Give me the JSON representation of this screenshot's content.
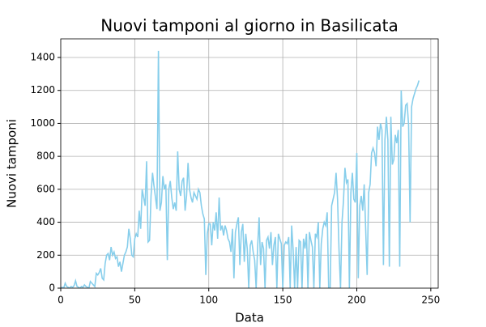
{
  "chart_data": {
    "type": "line",
    "title": "Nuovi tamponi al giorno in Basilicata",
    "xlabel": "Data",
    "ylabel": "Nuovi tamponi",
    "x": [
      0,
      1,
      2,
      3,
      4,
      5,
      6,
      7,
      8,
      9,
      10,
      11,
      12,
      13,
      14,
      15,
      16,
      17,
      18,
      19,
      20,
      21,
      22,
      23,
      24,
      25,
      26,
      27,
      28,
      29,
      30,
      31,
      32,
      33,
      34,
      35,
      36,
      37,
      38,
      39,
      40,
      41,
      42,
      43,
      44,
      45,
      46,
      47,
      48,
      49,
      50,
      51,
      52,
      53,
      54,
      55,
      56,
      57,
      58,
      59,
      60,
      61,
      62,
      63,
      64,
      65,
      66,
      67,
      68,
      69,
      70,
      71,
      72,
      73,
      74,
      75,
      76,
      77,
      78,
      79,
      80,
      81,
      82,
      83,
      84,
      85,
      86,
      87,
      88,
      89,
      90,
      91,
      92,
      93,
      94,
      95,
      96,
      97,
      98,
      99,
      100,
      101,
      102,
      103,
      104,
      105,
      106,
      107,
      108,
      109,
      110,
      111,
      112,
      113,
      114,
      115,
      116,
      117,
      118,
      119,
      120,
      121,
      122,
      123,
      124,
      125,
      126,
      127,
      128,
      129,
      130,
      131,
      132,
      133,
      134,
      135,
      136,
      137,
      138,
      139,
      140,
      141,
      142,
      143,
      144,
      145,
      146,
      147,
      148,
      149,
      150,
      151,
      152,
      153,
      154,
      155,
      156,
      157,
      158,
      159,
      160,
      161,
      162,
      163,
      164,
      165,
      166,
      167,
      168,
      169,
      170,
      171,
      172,
      173,
      174,
      175,
      176,
      177,
      178,
      179,
      180,
      181,
      182,
      183,
      184,
      185,
      186,
      187,
      188,
      189,
      190,
      191,
      192,
      193,
      194,
      195,
      196,
      197,
      198,
      199,
      200,
      201,
      202,
      203,
      204,
      205,
      206,
      207,
      208,
      209,
      210,
      211,
      212,
      213,
      214,
      215,
      216,
      217,
      218,
      219,
      220,
      221,
      222,
      223,
      224,
      225,
      226,
      227,
      228,
      229,
      230,
      231,
      232,
      233,
      234,
      235,
      236,
      237,
      238,
      239,
      240,
      241,
      242
    ],
    "series": [
      {
        "color": "#87ceeb",
        "values": [
          0,
          5,
          0,
          30,
          10,
          5,
          0,
          10,
          5,
          15,
          45,
          10,
          5,
          0,
          10,
          5,
          20,
          10,
          5,
          0,
          40,
          30,
          20,
          10,
          90,
          80,
          95,
          120,
          60,
          50,
          150,
          200,
          210,
          170,
          250,
          200,
          220,
          180,
          190,
          130,
          160,
          100,
          150,
          200,
          220,
          250,
          360,
          300,
          200,
          190,
          300,
          330,
          310,
          470,
          360,
          600,
          550,
          500,
          770,
          280,
          290,
          560,
          700,
          620,
          550,
          480,
          1440,
          470,
          520,
          680,
          600,
          630,
          170,
          600,
          650,
          550,
          480,
          520,
          470,
          830,
          600,
          560,
          650,
          670,
          470,
          560,
          760,
          600,
          550,
          520,
          580,
          560,
          540,
          600,
          580,
          500,
          450,
          420,
          80,
          330,
          390,
          390,
          260,
          400,
          350,
          460,
          300,
          550,
          350,
          380,
          320,
          380,
          350,
          300,
          280,
          220,
          360,
          60,
          340,
          390,
          430,
          140,
          340,
          390,
          160,
          330,
          240,
          0,
          260,
          290,
          220,
          170,
          0,
          250,
          430,
          140,
          280,
          240,
          0,
          290,
          310,
          240,
          340,
          140,
          260,
          310,
          0,
          330,
          300,
          270,
          0,
          260,
          280,
          270,
          310,
          0,
          380,
          230,
          0,
          250,
          0,
          290,
          280,
          0,
          300,
          240,
          330,
          0,
          340,
          290,
          250,
          0,
          330,
          310,
          400,
          0,
          270,
          360,
          400,
          380,
          460,
          0,
          0,
          500,
          540,
          580,
          700,
          540,
          230,
          0,
          400,
          530,
          730,
          640,
          660,
          0,
          580,
          700,
          540,
          520,
          820,
          60,
          500,
          560,
          470,
          630,
          360,
          80,
          580,
          630,
          820,
          850,
          820,
          740,
          980,
          900,
          1000,
          960,
          140,
          900,
          1040,
          900,
          130,
          1040,
          750,
          780,
          930,
          880,
          960,
          130,
          1200,
          980,
          1000,
          1110,
          1120,
          990,
          400,
          1100,
          1150,
          1180,
          1210,
          1230,
          1260
        ]
      }
    ],
    "xlim": [
      0,
      255
    ],
    "ylim": [
      0,
      1513
    ],
    "xticks": [
      0,
      50,
      100,
      150,
      200,
      250
    ],
    "yticks": [
      0,
      200,
      400,
      600,
      800,
      1000,
      1200,
      1400
    ],
    "grid": true
  }
}
